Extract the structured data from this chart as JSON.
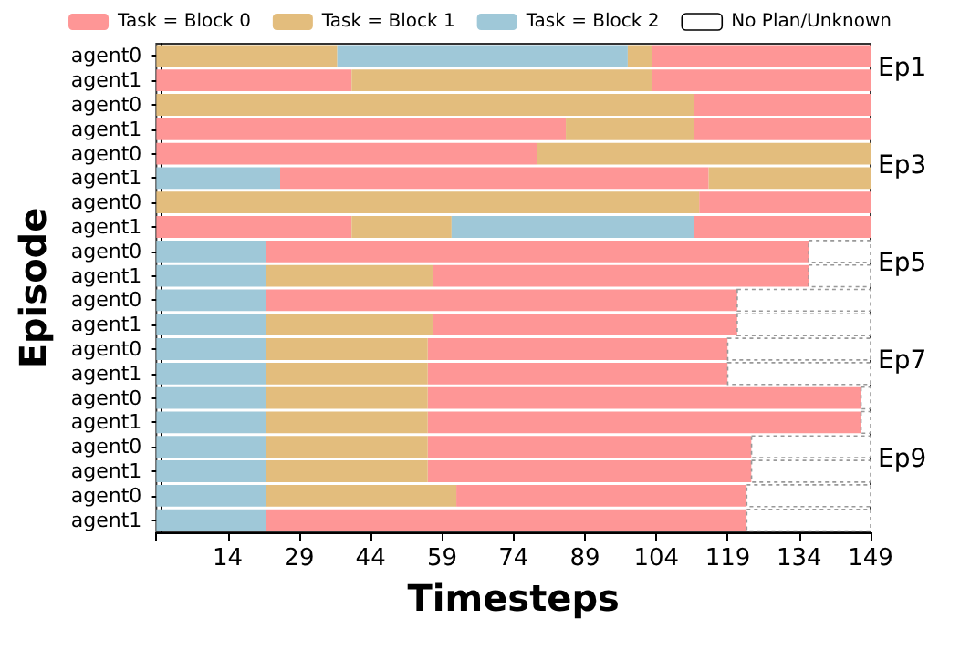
{
  "chart_data": {
    "type": "bar",
    "orientation": "horizontal",
    "xlabel": "Timesteps",
    "ylabel": "Episode",
    "legend": "top",
    "categories": [
      "agent0",
      "agent1",
      "agent0",
      "agent1",
      "agent0",
      "agent1",
      "agent0",
      "agent1",
      "agent0",
      "agent1",
      "agent0",
      "agent1",
      "agent0",
      "agent1",
      "agent0",
      "agent1",
      "agent0",
      "agent1",
      "agent0",
      "agent1"
    ],
    "xlim": [
      -1,
      149
    ],
    "xticks": [
      {
        "value": -1,
        "label": null
      },
      14,
      29,
      44,
      59,
      74,
      89,
      104,
      119,
      134,
      149
    ],
    "annotations": [
      "Ep1",
      "Ep3",
      "Ep5",
      "Ep7",
      "Ep9"
    ],
    "series": [
      {
        "name": "Task = Block 0",
        "color": "#fe9696",
        "base": [
          103,
          -1,
          112,
          -1,
          -1,
          25,
          113,
          -1,
          22,
          57,
          22,
          57,
          56,
          56,
          56,
          56,
          56,
          56,
          62,
          22
        ],
        "values": [
          46,
          41,
          37,
          86,
          80,
          90,
          36,
          41,
          114,
          79,
          99,
          64,
          63,
          63,
          91,
          91,
          68,
          68,
          61,
          101
        ]
      },
      {
        "name": "Task = Block 1",
        "color": "#e3bd7d",
        "base": [
          -1,
          40,
          -1,
          85,
          79,
          115,
          -1,
          40,
          null,
          22,
          null,
          22,
          22,
          22,
          22,
          22,
          22,
          22,
          22,
          null
        ],
        "values": [
          38,
          63,
          113,
          27,
          70,
          34,
          114,
          21,
          null,
          35,
          null,
          35,
          34,
          34,
          34,
          34,
          34,
          34,
          40,
          null
        ]
      },
      {
        "name": "Task = Block 2",
        "color": "#9fc8d8",
        "base": [
          37,
          null,
          null,
          null,
          null,
          -1,
          null,
          61,
          -1,
          -1,
          -1,
          -1,
          -1,
          -1,
          -1,
          -1,
          -1,
          -1,
          -1,
          -1
        ],
        "values": [
          61,
          null,
          null,
          null,
          null,
          26,
          null,
          51,
          23,
          23,
          23,
          23,
          23,
          23,
          23,
          23,
          23,
          23,
          23,
          23
        ]
      },
      {
        "name": "No Plan/Unknown",
        "color": "#ffffff",
        "base": [
          null,
          null,
          null,
          null,
          null,
          null,
          null,
          null,
          136,
          136,
          121,
          121,
          119,
          119,
          147,
          147,
          124,
          124,
          123,
          123
        ],
        "values": [
          null,
          null,
          null,
          null,
          null,
          null,
          null,
          null,
          13,
          13,
          28,
          28,
          30,
          30,
          2,
          2,
          25,
          25,
          26,
          26
        ]
      },
      {
        "color": "#fe9696",
        "base": [
          null,
          103,
          null,
          112,
          null,
          null,
          null,
          112,
          null,
          null,
          null,
          null,
          null,
          null,
          null,
          null,
          null,
          null,
          null,
          null
        ],
        "values": [
          null,
          46,
          null,
          37,
          null,
          null,
          null,
          37,
          null,
          null,
          null,
          null,
          null,
          null,
          null,
          null,
          null,
          null,
          null,
          null
        ]
      },
      {
        "color": "#e3bd7d",
        "base": [
          98,
          null,
          null,
          null,
          null,
          null,
          null,
          null,
          null,
          null,
          null,
          null,
          null,
          null,
          null,
          null,
          null,
          null,
          null,
          null
        ],
        "values": [
          5,
          null,
          null,
          null,
          null,
          null,
          null,
          null,
          null,
          null,
          null,
          null,
          null,
          null,
          null,
          null,
          null,
          null,
          null,
          null
        ]
      }
    ]
  }
}
